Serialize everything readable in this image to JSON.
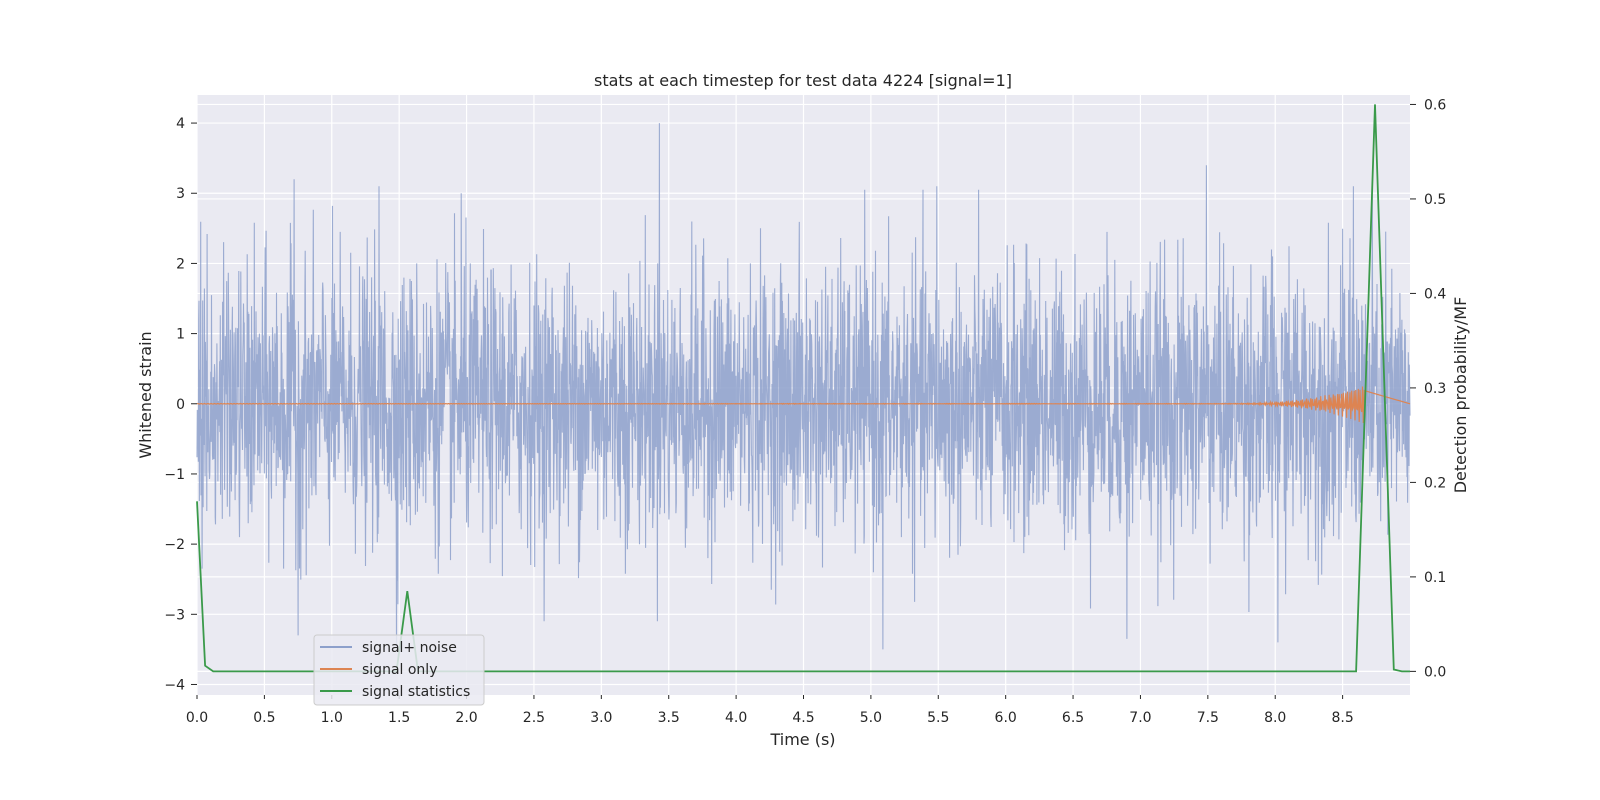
{
  "chart_data": {
    "type": "line",
    "title": "stats at each timestep for test data 4224 [signal=1]",
    "xlabel": "Time (s)",
    "ylabel": "Whitened strain",
    "y2label": "Detection probability/MF",
    "xlim": [
      0,
      9
    ],
    "ylim": [
      -4.15,
      4.4
    ],
    "y2lim": [
      -0.025,
      0.61
    ],
    "xticks": [
      0.0,
      0.5,
      1.0,
      1.5,
      2.0,
      2.5,
      3.0,
      3.5,
      4.0,
      4.5,
      5.0,
      5.5,
      6.0,
      6.5,
      7.0,
      7.5,
      8.0,
      8.5
    ],
    "yticks": [
      -4,
      -3,
      -2,
      -1,
      0,
      1,
      2,
      3,
      4
    ],
    "y2ticks": [
      0.0,
      0.1,
      0.2,
      0.3,
      0.4,
      0.5,
      0.6
    ],
    "grid": true,
    "legend_position": "lower-left",
    "series": [
      {
        "name": "signal+ noise",
        "axis": "left",
        "color": "#8da0cb",
        "description_samples": 3600,
        "noise_std": 1.0,
        "peaks": [
          {
            "x": 0.72,
            "y": 3.2
          },
          {
            "x": 1.35,
            "y": 3.1
          },
          {
            "x": 1.96,
            "y": 3.0
          },
          {
            "x": 3.43,
            "y": 4.0
          },
          {
            "x": 5.49,
            "y": 3.1
          },
          {
            "x": 7.49,
            "y": 3.4
          },
          {
            "x": 8.58,
            "y": 3.1
          },
          {
            "x": 0.75,
            "y": -3.3
          },
          {
            "x": 1.48,
            "y": -3.5
          },
          {
            "x": 5.09,
            "y": -3.5
          },
          {
            "x": 6.9,
            "y": -3.35
          },
          {
            "x": 8.02,
            "y": -3.4
          }
        ]
      },
      {
        "name": "signal only",
        "axis": "left",
        "color": "#dd8452",
        "chirp_start": 7.5,
        "chirp_end": 8.66,
        "chirp_peak_amplitude": 0.28
      },
      {
        "name": "signal statistics",
        "axis": "right",
        "color": "#3a9a4a",
        "x": [
          0.0,
          0.06,
          0.12,
          1.48,
          1.56,
          1.64,
          8.6,
          8.74,
          8.88,
          8.94,
          9.0
        ],
        "y": [
          0.18,
          0.006,
          0.0,
          0.0,
          0.085,
          0.0,
          0.0,
          0.6,
          0.002,
          0.0,
          0.0
        ]
      }
    ]
  }
}
